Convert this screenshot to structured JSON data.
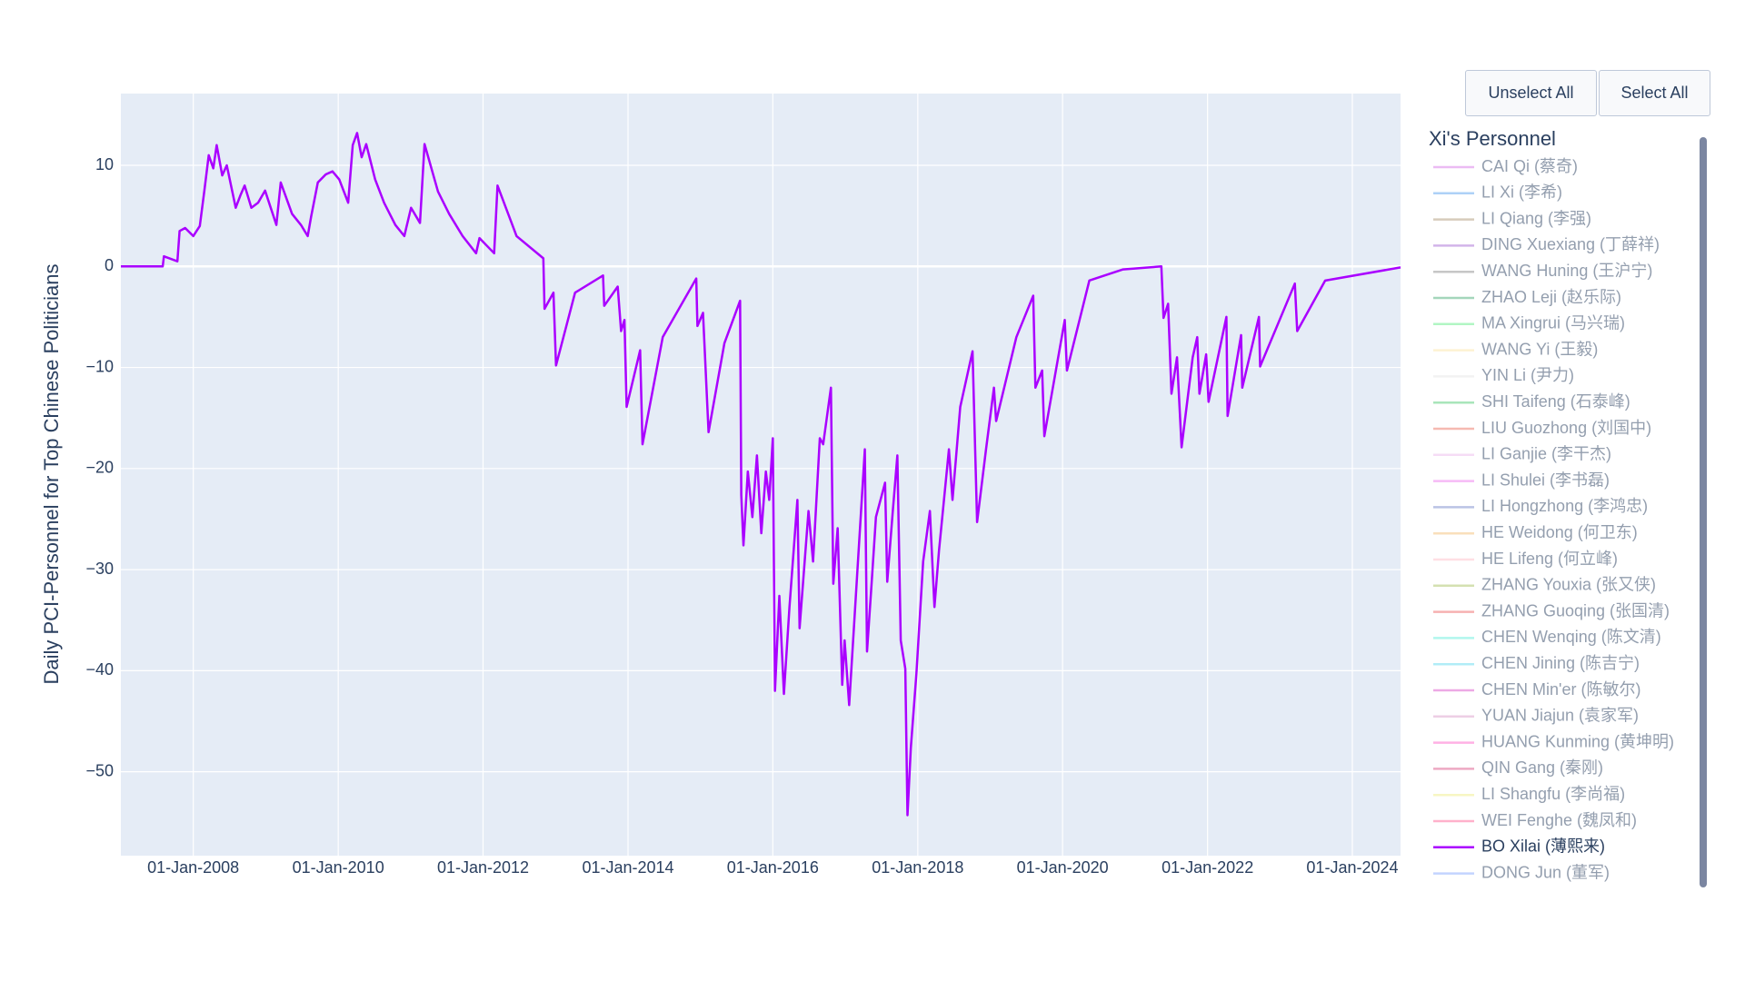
{
  "chart_data": {
    "type": "line",
    "y_title": "Daily PCI-Personnel for Top Chinese Politicians",
    "legend_title": "Xi's Personnel",
    "buttons": [
      "Unselect All",
      "Select All"
    ],
    "xlim": [
      "2007-01-01",
      "2024-08-31"
    ],
    "xticks": [
      {
        "value": "2008-01-01",
        "label": "01-Jan-2008"
      },
      {
        "value": "2010-01-01",
        "label": "01-Jan-2010"
      },
      {
        "value": "2012-01-01",
        "label": "01-Jan-2012"
      },
      {
        "value": "2014-01-01",
        "label": "01-Jan-2014"
      },
      {
        "value": "2016-01-01",
        "label": "01-Jan-2016"
      },
      {
        "value": "2018-01-01",
        "label": "01-Jan-2018"
      },
      {
        "value": "2020-01-01",
        "label": "01-Jan-2020"
      },
      {
        "value": "2022-01-01",
        "label": "01-Jan-2022"
      },
      {
        "value": "2024-01-01",
        "label": "01-Jan-2024"
      }
    ],
    "ylim": [
      -58.3,
      17.1
    ],
    "yticks": [
      10,
      0,
      {
        "value": -10,
        "label": "−10"
      },
      {
        "value": -20,
        "label": "−20"
      },
      {
        "value": -30,
        "label": "−30"
      },
      {
        "value": -40,
        "label": "−40"
      },
      {
        "value": -50,
        "label": "−50"
      }
    ],
    "grid": true,
    "x": [
      "2007-01-01",
      "2007-07-31",
      "2007-08-06",
      "2007-10-13",
      "2007-10-24",
      "2007-11-21",
      "2008-01-01",
      "2008-02-03",
      "2008-02-26",
      "2008-03-19",
      "2008-04-11",
      "2008-04-28",
      "2008-05-26",
      "2008-06-18",
      "2008-08-02",
      "2008-08-25",
      "2008-09-16",
      "2008-10-20",
      "2008-11-23",
      "2008-12-28",
      "2009-02-23",
      "2009-03-17",
      "2009-05-13",
      "2009-06-27",
      "2009-07-31",
      "2009-08-17",
      "2009-09-20",
      "2009-10-30",
      "2009-12-03",
      "2010-01-06",
      "2010-02-20",
      "2010-03-15",
      "2010-04-06",
      "2010-04-29",
      "2010-05-22",
      "2010-07-06",
      "2010-08-20",
      "2010-10-16",
      "2010-11-30",
      "2011-01-03",
      "2011-02-17",
      "2011-03-12",
      "2011-05-19",
      "2011-07-14",
      "2011-09-20",
      "2011-11-27",
      "2011-12-14",
      "2012-02-26",
      "2012-03-14",
      "2012-06-18",
      "2012-10-31",
      "2012-11-06",
      "2012-12-21",
      "2013-01-03",
      "2013-04-09",
      "2013-08-28",
      "2013-09-03",
      "2013-11-10",
      "2013-11-27",
      "2013-12-14",
      "2013-12-25",
      "2014-01-17",
      "2014-03-03",
      "2014-03-15",
      "2014-06-25",
      "2014-12-11",
      "2014-12-17",
      "2015-01-14",
      "2015-02-11",
      "2015-05-02",
      "2015-07-20",
      "2015-07-26",
      "2015-08-06",
      "2015-08-28",
      "2015-09-20",
      "2015-10-13",
      "2015-11-04",
      "2015-11-27",
      "2015-12-14",
      "2016-01-01",
      "2016-01-12",
      "2016-02-03",
      "2016-02-26",
      "2016-03-25",
      "2016-05-04",
      "2016-05-15",
      "2016-06-29",
      "2016-07-22",
      "2016-08-25",
      "2016-09-11",
      "2016-10-20",
      "2016-11-01",
      "2016-11-23",
      "2016-12-16",
      "2016-12-28",
      "2017-01-20",
      "2017-04-09",
      "2017-04-20",
      "2017-05-13",
      "2017-06-04",
      "2017-07-20",
      "2017-07-31",
      "2017-08-28",
      "2017-09-20",
      "2017-10-07",
      "2017-10-30",
      "2017-11-10",
      "2017-11-27",
      "2017-12-25",
      "2018-01-28",
      "2018-03-03",
      "2018-03-26",
      "2018-04-18",
      "2018-06-07",
      "2018-06-25",
      "2018-08-03",
      "2018-10-04",
      "2018-10-27",
      "2018-12-11",
      "2019-01-20",
      "2019-01-31",
      "2019-05-13",
      "2019-08-06",
      "2019-08-17",
      "2019-09-20",
      "2019-10-01",
      "2020-01-12",
      "2020-01-23",
      "2020-05-15",
      "2020-11-01",
      "2021-05-13",
      "2021-05-24",
      "2021-06-16",
      "2021-07-03",
      "2021-07-31",
      "2021-08-23",
      "2021-10-18",
      "2021-11-10",
      "2021-11-21",
      "2021-12-25",
      "2022-01-06",
      "2022-04-06",
      "2022-04-12",
      "2022-06-19",
      "2022-06-25",
      "2022-09-17",
      "2022-09-23",
      "2023-03-17",
      "2023-03-29",
      "2023-08-17",
      "2024-08-31"
    ],
    "series": [
      {
        "name": "CAI Qi (蔡奇)",
        "color": "#d97ae8",
        "visible": false
      },
      {
        "name": "LI Xi (李希)",
        "color": "#5ea5f0",
        "visible": false
      },
      {
        "name": "LI Qiang (李强)",
        "color": "#b09a7a",
        "visible": false
      },
      {
        "name": "DING Xuexiang (丁薛祥)",
        "color": "#a66bd4",
        "visible": false
      },
      {
        "name": "WANG Huning (王沪宁)",
        "color": "#8e8e8e",
        "visible": false
      },
      {
        "name": "ZHAO Leji (赵乐际)",
        "color": "#4caf7a",
        "visible": false
      },
      {
        "name": "MA Xingrui (马兴瑞)",
        "color": "#66ee88",
        "visible": false
      },
      {
        "name": "WANG Yi (王毅)",
        "color": "#fce7a6",
        "visible": false
      },
      {
        "name": "YIN Li (尹力)",
        "color": "#e6e6e6",
        "visible": false
      },
      {
        "name": "SHI Taifeng (石泰峰)",
        "color": "#55cc77",
        "visible": false
      },
      {
        "name": "LIU Guozhong (刘国中)",
        "color": "#ee7766",
        "visible": false
      },
      {
        "name": "LI Ganjie (李干杰)",
        "color": "#eebbee",
        "visible": false
      },
      {
        "name": "LI Shulei (李书磊)",
        "color": "#ee77ee",
        "visible": false
      },
      {
        "name": "LI Hongzhong (李鸿忠)",
        "color": "#7788cc",
        "visible": false
      },
      {
        "name": "HE Weidong (何卫东)",
        "color": "#f5c07a",
        "visible": false
      },
      {
        "name": "HE Lifeng (何立峰)",
        "color": "#ffc0cb",
        "visible": false
      },
      {
        "name": "ZHANG Youxia (张又侠)",
        "color": "#aac466",
        "visible": false
      },
      {
        "name": "ZHANG Guoqing (张国清)",
        "color": "#ee6666",
        "visible": false
      },
      {
        "name": "CHEN Wenqing (陈文清)",
        "color": "#66eedd",
        "visible": false
      },
      {
        "name": "CHEN Jining (陈吉宁)",
        "color": "#66ddf0",
        "visible": false
      },
      {
        "name": "CHEN Min'er (陈敏尔)",
        "color": "#dd55cc",
        "visible": false
      },
      {
        "name": "YUAN Jiajun (袁家军)",
        "color": "#dda0cc",
        "visible": false
      },
      {
        "name": "HUANG Kunming (黄坤明)",
        "color": "#ff66cc",
        "visible": false
      },
      {
        "name": "QIN Gang (秦刚)",
        "color": "#dd5588",
        "visible": false
      },
      {
        "name": "LI Shangfu (李尚福)",
        "color": "#f0ee88",
        "visible": false
      },
      {
        "name": "WEI Fenghe (魏凤和)",
        "color": "#ff6699",
        "visible": false
      },
      {
        "name": "BO Xilai (薄熙来)",
        "color": "#aa00ff",
        "visible": true,
        "values": [
          0,
          0,
          1.0,
          0.5,
          3.5,
          3.8,
          3,
          4,
          7.5,
          11,
          9.7,
          12,
          9,
          10,
          5.8,
          7,
          8,
          5.8,
          6.3,
          7.5,
          4.1,
          8.3,
          5.2,
          4.1,
          3,
          4.9,
          8.3,
          9.1,
          9.4,
          8.6,
          6.3,
          12,
          13.2,
          10.8,
          12.1,
          8.6,
          6.3,
          4.1,
          3,
          5.8,
          4.3,
          12.1,
          7.4,
          5.2,
          3,
          1.3,
          2.8,
          1.3,
          8,
          3,
          0.8,
          -4.2,
          -2.6,
          -9.8,
          -2.6,
          -0.9,
          -3.9,
          -2,
          -6.4,
          -5.3,
          -13.9,
          -12,
          -8.3,
          -17.6,
          -7,
          -1.2,
          -5.9,
          -4.6,
          -16.4,
          -7.6,
          -3.4,
          -22.6,
          -27.6,
          -20.3,
          -24.8,
          -18.7,
          -26.4,
          -20.3,
          -23.1,
          -17,
          -42,
          -32.6,
          -42.3,
          -33.7,
          -23.1,
          -35.8,
          -24.2,
          -29.2,
          -17,
          -17.6,
          -12,
          -31.4,
          -25.9,
          -41.4,
          -37,
          -43.4,
          -18.1,
          -38.1,
          -31.4,
          -24.8,
          -21.4,
          -31.2,
          -24.2,
          -18.7,
          -37,
          -39.8,
          -54.3,
          -47.6,
          -40.3,
          -29.2,
          -24.2,
          -33.7,
          -28.1,
          -18.1,
          -23.1,
          -13.9,
          -8.4,
          -25.3,
          -18.1,
          -12,
          -15.3,
          -7,
          -2.9,
          -12,
          -10.3,
          -16.8,
          -5.3,
          -10.3,
          -1.4,
          -0.3,
          0,
          -5.1,
          -3.7,
          -12.6,
          -9,
          -17.9,
          -9,
          -7,
          -12.6,
          -8.7,
          -13.4,
          -5,
          -14.8,
          -6.8,
          -12,
          -5,
          -9.9,
          -1.7,
          -6.4,
          -1.4,
          -0.1
        ]
      },
      {
        "name": "DONG Jun (董军)",
        "color": "#88aaff",
        "visible": false
      }
    ]
  }
}
